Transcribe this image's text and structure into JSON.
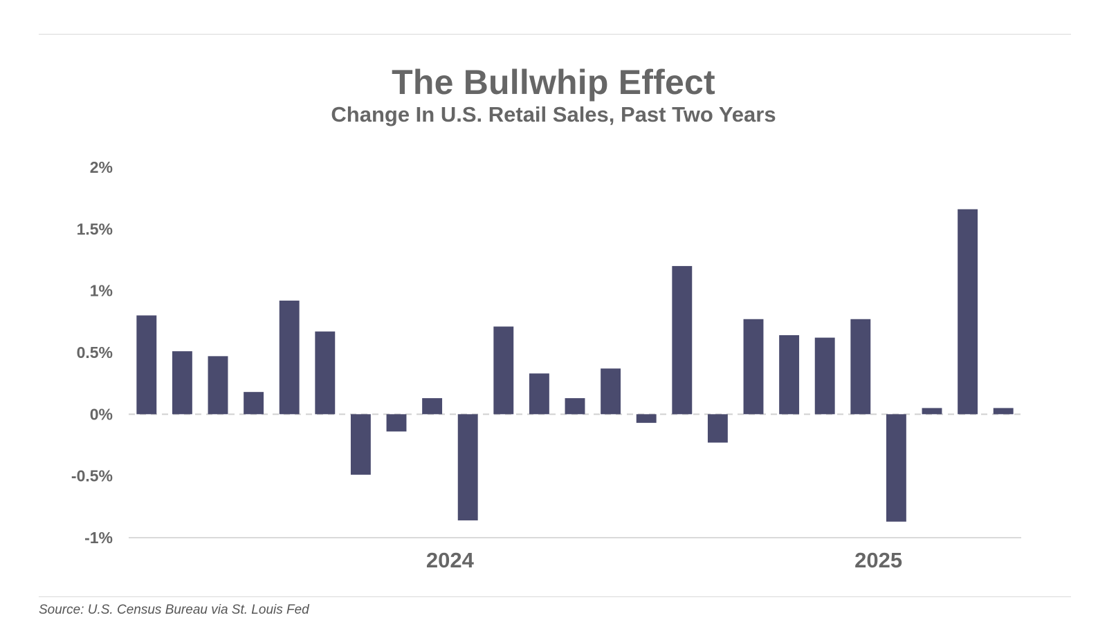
{
  "chart_data": {
    "type": "bar",
    "title": "The Bullwhip Effect",
    "subtitle": "Change In U.S. Retail Sales, Past Two Years",
    "source": "Source: U.S. Census Bureau via St. Louis Fed",
    "xlabel": "",
    "ylabel": "",
    "ylim": [
      -1,
      2
    ],
    "y_ticks": [
      {
        "value": 2,
        "label": "2%"
      },
      {
        "value": 1.5,
        "label": "1.5%"
      },
      {
        "value": 1,
        "label": "1%"
      },
      {
        "value": 0.5,
        "label": "0.5%"
      },
      {
        "value": 0,
        "label": "0%"
      },
      {
        "value": -0.5,
        "label": "-0.5%"
      },
      {
        "value": -1,
        "label": "-1%"
      }
    ],
    "x_tick_labels": [
      {
        "label": "2024",
        "after_bar": 9
      },
      {
        "label": "2025",
        "after_bar": 21
      }
    ],
    "values": [
      0.8,
      0.51,
      0.47,
      0.18,
      0.92,
      0.67,
      -0.49,
      -0.14,
      0.13,
      -0.86,
      0.71,
      0.33,
      0.13,
      0.37,
      -0.07,
      1.2,
      -0.23,
      0.77,
      0.64,
      0.62,
      0.77,
      -0.87,
      0.05,
      1.66,
      0.05
    ],
    "grid": false,
    "bar_color": "#4a4b6e",
    "text_color": "#666666"
  }
}
